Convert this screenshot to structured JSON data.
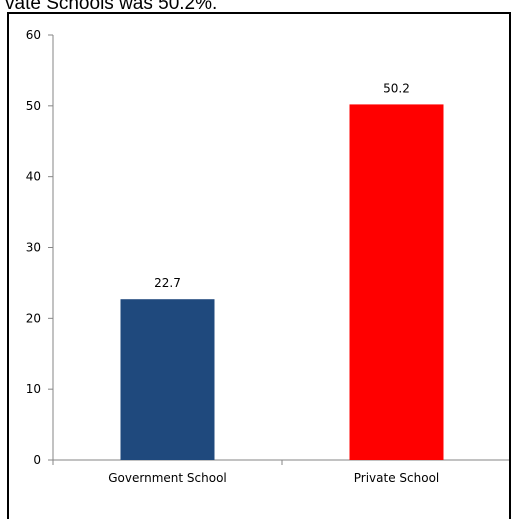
{
  "caption": {
    "text": "vate Schools was 50.2%."
  },
  "chart_data": {
    "type": "bar",
    "categories": [
      "Government School",
      "Private School"
    ],
    "values": [
      22.7,
      50.2
    ],
    "data_labels": [
      "22.7",
      "50.2"
    ],
    "bar_colors": [
      "#1F497D",
      "#FF0000"
    ],
    "title": "",
    "xlabel": "",
    "ylabel": "",
    "ylim": [
      0,
      60
    ],
    "yticks": [
      0,
      10,
      20,
      30,
      40,
      50,
      60
    ],
    "ytick_labels": [
      "0",
      "10",
      "20",
      "30",
      "40",
      "50",
      "60"
    ],
    "grid": false,
    "legend": "none"
  }
}
